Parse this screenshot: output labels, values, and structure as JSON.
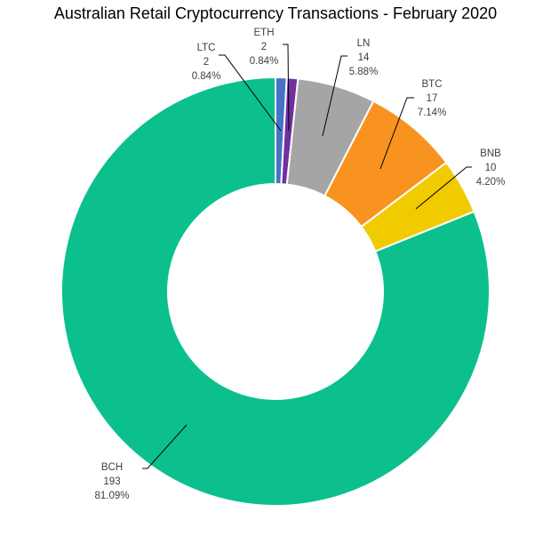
{
  "chart_data": {
    "type": "pie",
    "donut": true,
    "title": "Australian Retail Cryptocurrency Transactions - February 2020",
    "slices": [
      {
        "label": "LTC",
        "value": 2,
        "percent": "0.84%",
        "color": "#4472C4"
      },
      {
        "label": "ETH",
        "value": 2,
        "percent": "0.84%",
        "color": "#7030A0"
      },
      {
        "label": "LN",
        "value": 14,
        "percent": "5.88%",
        "color": "#A5A5A5"
      },
      {
        "label": "BTC",
        "value": 17,
        "percent": "7.14%",
        "color": "#F7931E"
      },
      {
        "label": "BNB",
        "value": 10,
        "percent": "4.20%",
        "color": "#F0CB00"
      },
      {
        "label": "BCH",
        "value": 193,
        "percent": "81.09%",
        "color": "#0BC08C"
      }
    ],
    "legend": "none",
    "start_angle": "top, clockwise"
  }
}
